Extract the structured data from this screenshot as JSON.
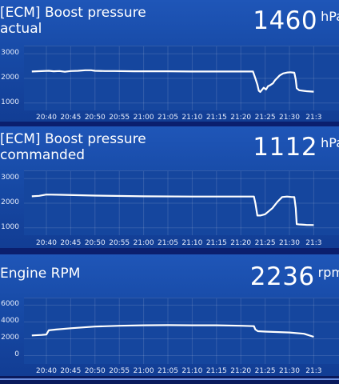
{
  "panels": [
    {
      "title": "[ECM] Boost pressure\nactual",
      "value": "1460",
      "unit": "hPa",
      "line_color": "#ffffff",
      "chart_data": {
        "type": "line",
        "title": "[ECM] Boost pressure actual",
        "ylabel": "",
        "ylim": [
          700,
          3300
        ],
        "y_ticks": [
          1000,
          2000,
          3000
        ],
        "y_tick_labels": [
          "1000",
          "2000",
          "3000"
        ],
        "x_ticks": [
          "20:40",
          "20:45",
          "20:50",
          "20:55",
          "21:00",
          "21:05",
          "21:10",
          "21:15",
          "21:20",
          "21:25",
          "21:30",
          "21:3"
        ],
        "series": [
          {
            "name": "",
            "x": [
              -3.0,
              0.5,
              1.5,
              2.7,
              3.8,
              5.0,
              6.5,
              8.0,
              9.2,
              10.0,
              12.0,
              14.0,
              18.0,
              25.0,
              30.0,
              35.0,
              40.0,
              42.5,
              43.0,
              43.4,
              43.7,
              44.0,
              44.7,
              45.2,
              45.6,
              46.0,
              46.6,
              47.0,
              48.0,
              48.7,
              49.6,
              50.2,
              50.6,
              51.0,
              51.3,
              51.5,
              52.0,
              53.5,
              55.0
            ],
            "y": [
              2280,
              2310,
              2290,
              2300,
              2270,
              2300,
              2310,
              2330,
              2330,
              2310,
              2300,
              2300,
              2290,
              2290,
              2280,
              2280,
              2280,
              2280,
              2000,
              1750,
              1500,
              1450,
              1620,
              1550,
              1680,
              1720,
              1800,
              1920,
              2120,
              2200,
              2240,
              2250,
              2240,
              2230,
              1950,
              1600,
              1520,
              1480,
              1460
            ]
          }
        ]
      }
    },
    {
      "title": "[ECM] Boost pressure\ncommanded",
      "value": "1112",
      "unit": "hPa",
      "line_color": "#ffffff",
      "chart_data": {
        "type": "line",
        "title": "[ECM] Boost pressure commanded",
        "ylabel": "",
        "ylim": [
          700,
          3300
        ],
        "y_ticks": [
          1000,
          2000,
          3000
        ],
        "y_tick_labels": [
          "1000",
          "2000",
          "3000"
        ],
        "x_ticks": [
          "20:40",
          "20:45",
          "20:50",
          "20:55",
          "21:00",
          "21:05",
          "21:10",
          "21:15",
          "21:20",
          "21:25",
          "21:30",
          "21:3"
        ],
        "series": [
          {
            "name": "",
            "x": [
              -3.0,
              -1.5,
              0.0,
              3.0,
              10.0,
              20.0,
              30.0,
              35.0,
              40.0,
              42.7,
              43.0,
              43.4,
              44.0,
              45.0,
              46.5,
              47.5,
              48.5,
              49.5,
              50.5,
              51.0,
              51.3,
              51.5,
              52.0,
              53.5,
              55.0
            ],
            "y": [
              2280,
              2300,
              2350,
              2340,
              2310,
              2280,
              2270,
              2270,
              2270,
              2270,
              2000,
              1500,
              1500,
              1550,
              1800,
              2050,
              2250,
              2270,
              2250,
              2250,
              1800,
              1150,
              1140,
              1120,
              1112
            ]
          }
        ]
      }
    },
    {
      "title": "Engine RPM",
      "value": "2236",
      "unit": "rpm",
      "line_color": "#ffffff",
      "chart_data": {
        "type": "line",
        "title": "Engine RPM",
        "ylabel": "",
        "ylim": [
          -1000,
          6800
        ],
        "y_ticks": [
          0,
          2000,
          4000,
          6000
        ],
        "y_tick_labels": [
          "0",
          "2000",
          "4000",
          "6000"
        ],
        "x_ticks": [
          "20:40",
          "20:45",
          "20:50",
          "20:55",
          "21:00",
          "21:05",
          "21:10",
          "21:15",
          "21:20",
          "21:25",
          "21:30",
          "21:3"
        ],
        "series": [
          {
            "name": "",
            "x": [
              -3.0,
              -1.0,
              0.0,
              0.5,
              2.0,
              5.0,
              10.0,
              15.0,
              20.0,
              25.0,
              30.0,
              35.0,
              40.0,
              42.7,
              43.0,
              43.5,
              45.0,
              50.0,
              53.0,
              55.0
            ],
            "y": [
              2400,
              2450,
              2500,
              3000,
              3100,
              3250,
              3450,
              3550,
              3600,
              3620,
              3600,
              3600,
              3550,
              3500,
              3100,
              2900,
              2850,
              2750,
              2600,
              2236
            ]
          }
        ]
      }
    }
  ]
}
